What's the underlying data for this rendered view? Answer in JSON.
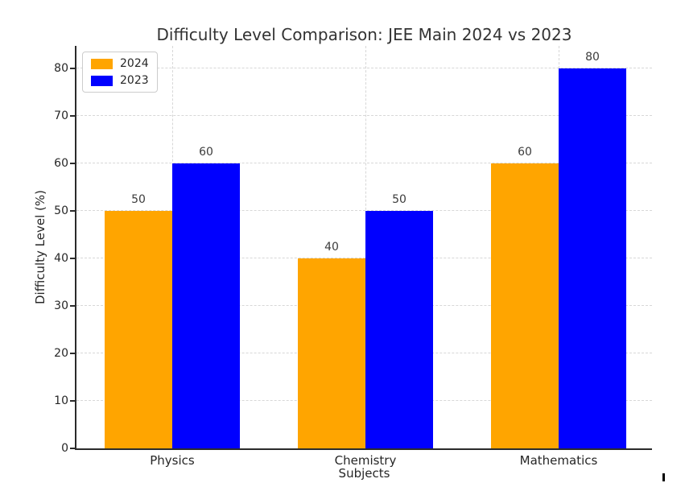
{
  "chart_data": {
    "type": "bar",
    "title": "Difficulty Level Comparison: JEE Main 2024 vs 2023",
    "xlabel": "Subjects",
    "ylabel": "Difficulty Level (%)",
    "categories": [
      "Physics",
      "Chemistry",
      "Mathematics"
    ],
    "series": [
      {
        "name": "2024",
        "color": "#FFA500",
        "values": [
          50,
          40,
          60
        ]
      },
      {
        "name": "2023",
        "color": "#0000FF",
        "values": [
          60,
          50,
          80
        ]
      }
    ],
    "yticks": [
      0,
      10,
      20,
      30,
      40,
      50,
      60,
      70,
      80
    ],
    "ylim": [
      0,
      84.7
    ],
    "grid": "dashed-horizontal-and-vertical",
    "gridline_color": "#d7d7d7",
    "legend_position": "upper-left",
    "bar_value_labels_shown": true,
    "colors": {
      "series_2024": "#FFA500",
      "series_2023": "#0000FF",
      "text": "#262626",
      "spine": "#2b2b2b"
    }
  }
}
